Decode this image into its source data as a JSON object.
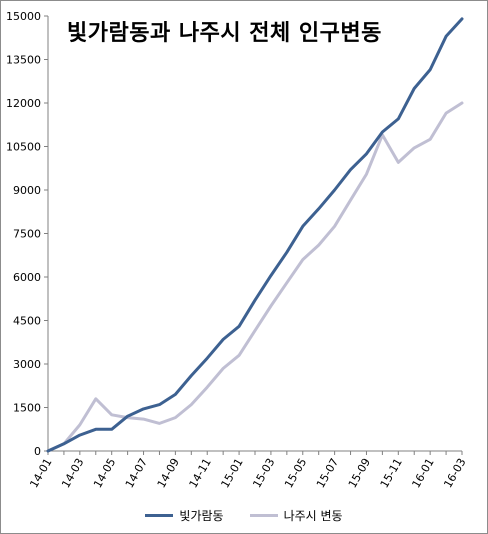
{
  "chart_data": {
    "type": "line",
    "title": "빛가람동과 나주시 전체 인구변동",
    "xlabel": "",
    "ylabel": "",
    "ylim": [
      0,
      15000
    ],
    "yticks": [
      0,
      1500,
      3000,
      4500,
      6000,
      7500,
      9000,
      10500,
      12000,
      13500,
      15000
    ],
    "x": [
      "14-01",
      "14-02",
      "14-03",
      "14-04",
      "14-05",
      "14-06",
      "14-07",
      "14-08",
      "14-09",
      "14-10",
      "14-11",
      "14-12",
      "15-01",
      "15-02",
      "15-03",
      "15-04",
      "15-05",
      "15-06",
      "15-07",
      "15-08",
      "15-09",
      "15-10",
      "15-11",
      "15-12",
      "16-01",
      "16-02",
      "16-03"
    ],
    "xtick_labels": [
      "14-01",
      "14-03",
      "14-05",
      "14-07",
      "14-09",
      "14-11",
      "15-01",
      "15-03",
      "15-05",
      "15-07",
      "15-09",
      "15-11",
      "16-01",
      "16-03"
    ],
    "grid": false,
    "legend_position": "bottom",
    "series": [
      {
        "name": "빛가람동",
        "color": "#3d6191",
        "values": [
          0,
          250,
          550,
          750,
          750,
          1200,
          1450,
          1600,
          1950,
          2600,
          3200,
          3850,
          4300,
          5200,
          6050,
          6850,
          7750,
          8350,
          9000,
          9700,
          10250,
          11000,
          11450,
          12500,
          13150,
          14300,
          14900
        ]
      },
      {
        "name": "나주시 변동",
        "color": "#c0bfd3",
        "values": [
          0,
          250,
          900,
          1800,
          1250,
          1150,
          1100,
          950,
          1150,
          1600,
          2200,
          2850,
          3300,
          4150,
          5000,
          5800,
          6600,
          7100,
          7750,
          8650,
          9550,
          10900,
          9950,
          10450,
          10750,
          11650,
          12000
        ]
      }
    ]
  }
}
